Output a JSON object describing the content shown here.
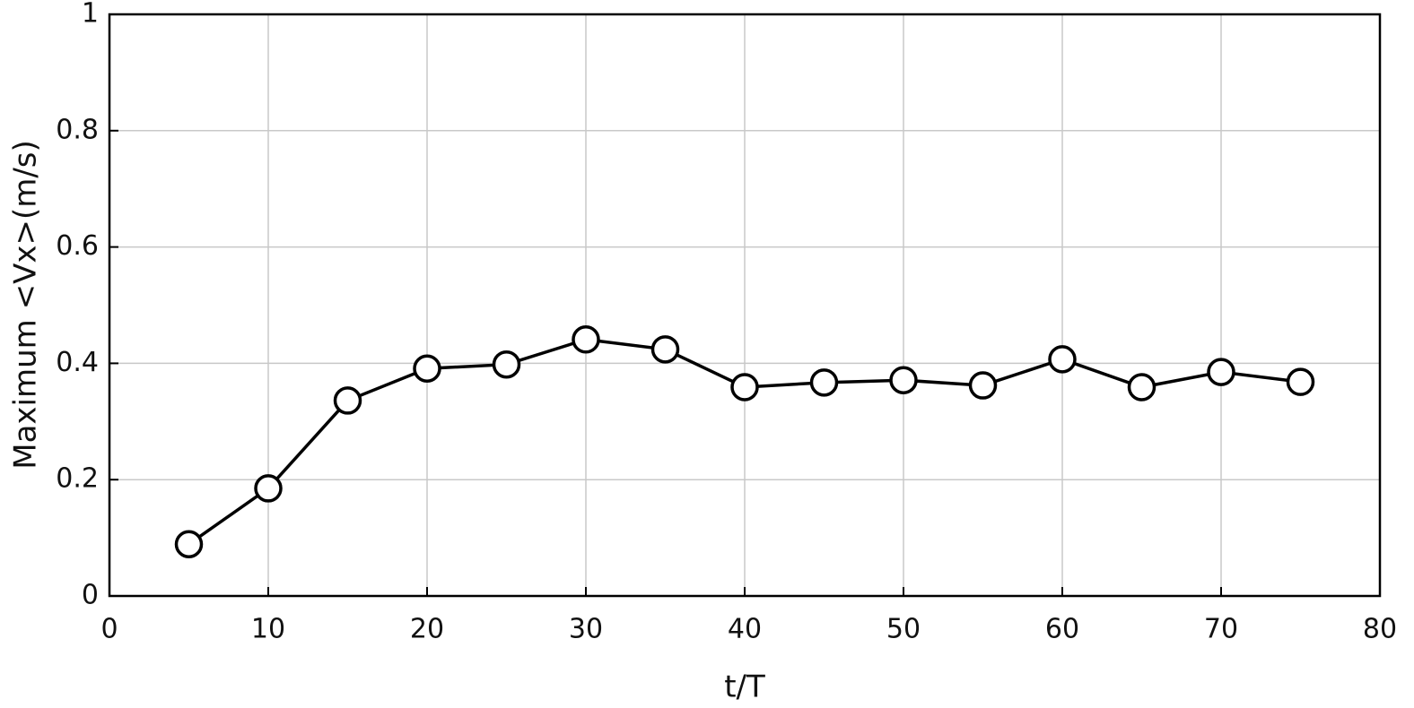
{
  "chart_data": {
    "type": "line",
    "xlabel": "t/T",
    "ylabel": "Maximum <Vx>(m/s)",
    "x": [
      5,
      10,
      15,
      20,
      25,
      30,
      35,
      40,
      45,
      50,
      55,
      60,
      65,
      70,
      75
    ],
    "values": [
      0.089,
      0.185,
      0.336,
      0.391,
      0.398,
      0.441,
      0.424,
      0.359,
      0.367,
      0.371,
      0.362,
      0.407,
      0.359,
      0.385,
      0.368
    ],
    "color": "#000000",
    "marker": "o",
    "xlim": [
      0,
      80
    ],
    "xticks": [
      0,
      10,
      20,
      30,
      40,
      50,
      60,
      70,
      80
    ],
    "ylim": [
      0,
      1
    ],
    "yticks": [
      0,
      0.2,
      0.4,
      0.6,
      0.8,
      1
    ],
    "grid": true
  }
}
